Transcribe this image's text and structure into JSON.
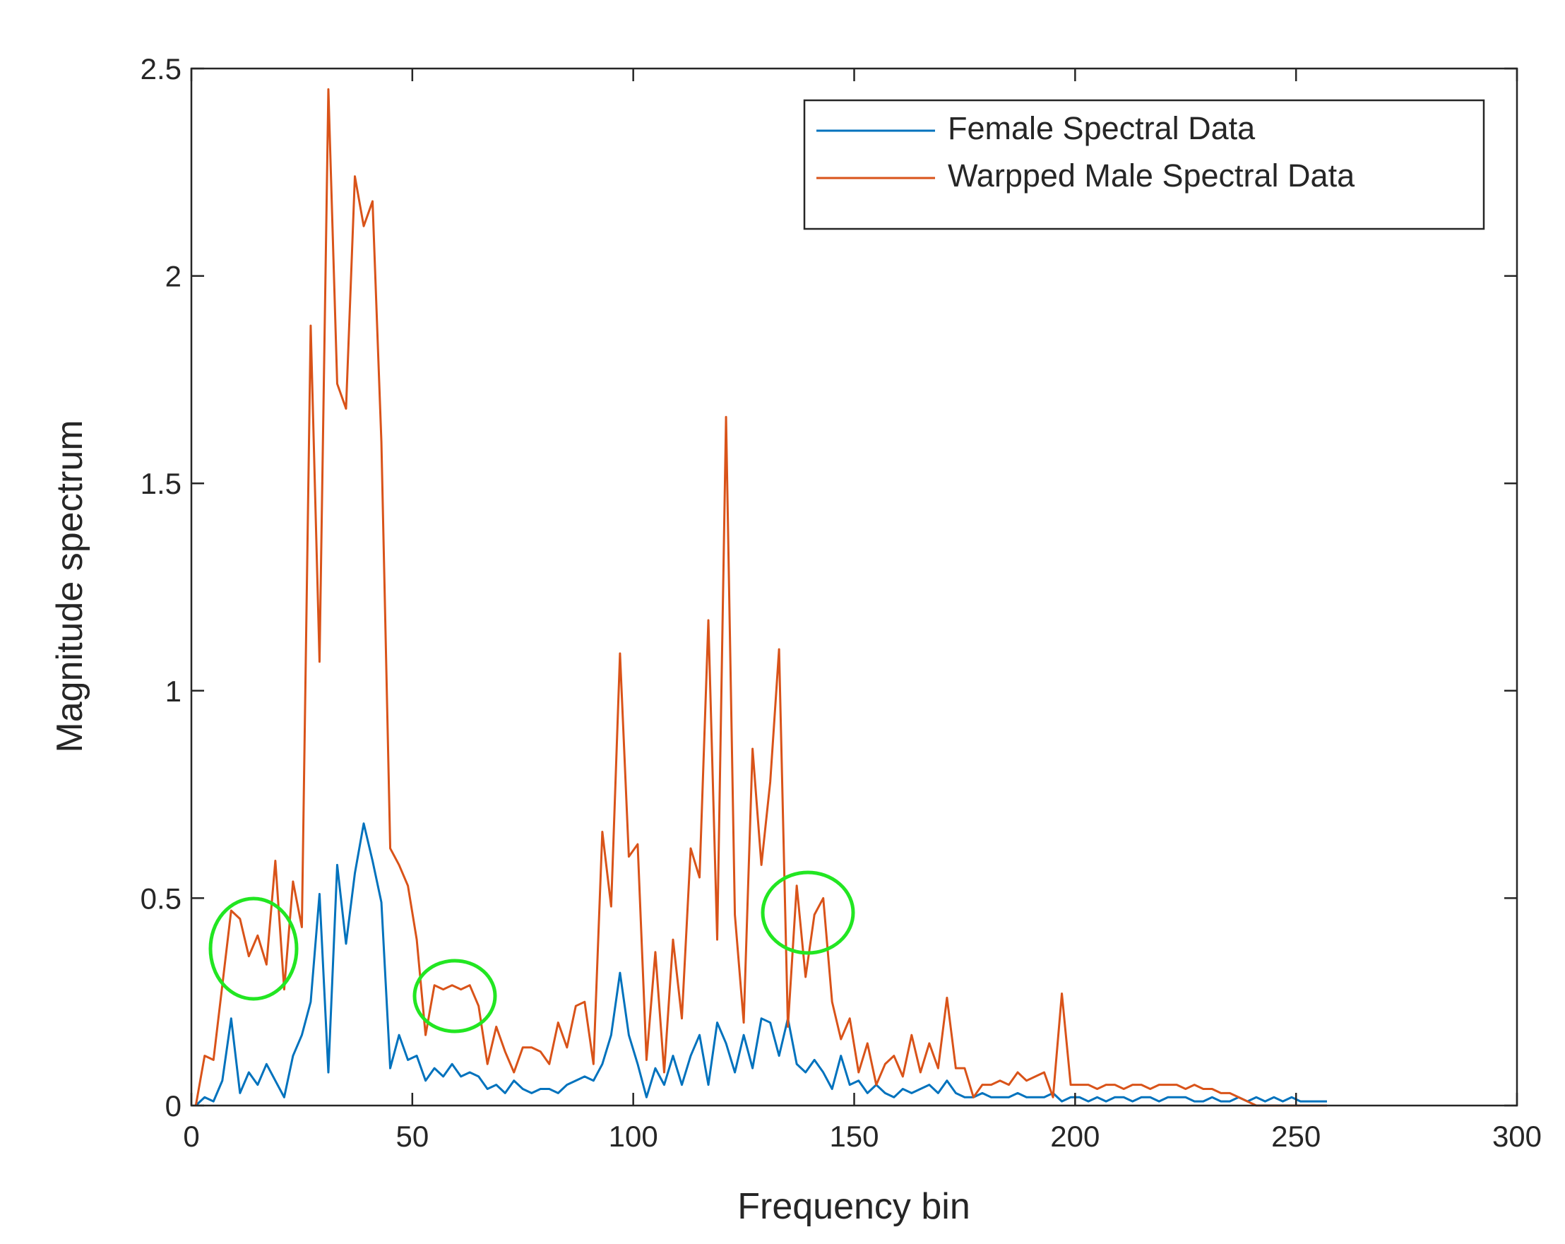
{
  "chart_data": {
    "type": "line",
    "xlabel": "Frequency bin",
    "ylabel": "Magnitude spectrum",
    "x": [
      1,
      3,
      5,
      7,
      9,
      11,
      13,
      15,
      17,
      19,
      21,
      23,
      25,
      27,
      29,
      31,
      33,
      35,
      37,
      39,
      41,
      43,
      45,
      47,
      49,
      51,
      53,
      55,
      57,
      59,
      61,
      63,
      65,
      67,
      69,
      71,
      73,
      75,
      77,
      79,
      81,
      83,
      85,
      87,
      89,
      91,
      93,
      95,
      97,
      99,
      101,
      103,
      105,
      107,
      109,
      111,
      113,
      115,
      117,
      119,
      121,
      123,
      125,
      127,
      129,
      131,
      133,
      135,
      137,
      139,
      141,
      143,
      145,
      147,
      149,
      151,
      153,
      155,
      157,
      159,
      161,
      163,
      165,
      167,
      169,
      171,
      173,
      175,
      177,
      179,
      181,
      183,
      185,
      187,
      189,
      191,
      193,
      195,
      197,
      199,
      201,
      203,
      205,
      207,
      209,
      211,
      213,
      215,
      217,
      219,
      221,
      223,
      225,
      227,
      229,
      231,
      233,
      235,
      237,
      239,
      241,
      243,
      245,
      247,
      249,
      251,
      253,
      255,
      257
    ],
    "series": [
      {
        "name": "Female Spectral Data",
        "color": "#0072BD",
        "values": [
          0,
          0.02,
          0.01,
          0.06,
          0.21,
          0.03,
          0.08,
          0.05,
          0.1,
          0.06,
          0.02,
          0.12,
          0.17,
          0.25,
          0.51,
          0.08,
          0.58,
          0.39,
          0.56,
          0.68,
          0.59,
          0.49,
          0.09,
          0.17,
          0.11,
          0.12,
          0.06,
          0.09,
          0.07,
          0.1,
          0.07,
          0.08,
          0.07,
          0.04,
          0.05,
          0.03,
          0.06,
          0.04,
          0.03,
          0.04,
          0.04,
          0.03,
          0.05,
          0.06,
          0.07,
          0.06,
          0.1,
          0.17,
          0.32,
          0.17,
          0.1,
          0.02,
          0.09,
          0.05,
          0.12,
          0.05,
          0.12,
          0.17,
          0.05,
          0.2,
          0.15,
          0.08,
          0.17,
          0.09,
          0.21,
          0.2,
          0.12,
          0.21,
          0.1,
          0.08,
          0.11,
          0.08,
          0.04,
          0.12,
          0.05,
          0.06,
          0.03,
          0.05,
          0.03,
          0.02,
          0.04,
          0.03,
          0.04,
          0.05,
          0.03,
          0.06,
          0.03,
          0.02,
          0.02,
          0.03,
          0.02,
          0.02,
          0.02,
          0.03,
          0.02,
          0.02,
          0.02,
          0.03,
          0.01,
          0.02,
          0.02,
          0.01,
          0.02,
          0.01,
          0.02,
          0.02,
          0.01,
          0.02,
          0.02,
          0.01,
          0.02,
          0.02,
          0.02,
          0.01,
          0.01,
          0.02,
          0.01,
          0.01,
          0.02,
          0.01,
          0.02,
          0.01,
          0.02,
          0.01,
          0.02,
          0.01,
          0.01,
          0.01,
          0.01
        ]
      },
      {
        "name": "Warpped Male Spectral Data",
        "color": "#D95319",
        "values": [
          0,
          0.12,
          0.11,
          0.29,
          0.47,
          0.45,
          0.36,
          0.41,
          0.34,
          0.59,
          0.28,
          0.54,
          0.43,
          1.88,
          1.07,
          2.45,
          1.74,
          1.68,
          2.24,
          2.12,
          2.18,
          1.6,
          0.62,
          0.58,
          0.53,
          0.4,
          0.17,
          0.29,
          0.28,
          0.29,
          0.28,
          0.29,
          0.24,
          0.1,
          0.19,
          0.13,
          0.08,
          0.14,
          0.14,
          0.13,
          0.1,
          0.2,
          0.14,
          0.24,
          0.25,
          0.1,
          0.66,
          0.48,
          1.09,
          0.6,
          0.63,
          0.11,
          0.37,
          0.08,
          0.4,
          0.21,
          0.62,
          0.55,
          1.17,
          0.4,
          1.66,
          0.46,
          0.2,
          0.86,
          0.58,
          0.78,
          1.1,
          0.19,
          0.53,
          0.31,
          0.46,
          0.5,
          0.25,
          0.16,
          0.21,
          0.08,
          0.15,
          0.05,
          0.1,
          0.12,
          0.07,
          0.17,
          0.08,
          0.15,
          0.09,
          0.26,
          0.09,
          0.09,
          0.02,
          0.05,
          0.05,
          0.06,
          0.05,
          0.08,
          0.06,
          0.07,
          0.08,
          0.02,
          0.27,
          0.05,
          0.05,
          0.05,
          0.04,
          0.05,
          0.05,
          0.04,
          0.05,
          0.05,
          0.04,
          0.05,
          0.05,
          0.05,
          0.04,
          0.05,
          0.04,
          0.04,
          0.03,
          0.03,
          0.02,
          0.01,
          0,
          0,
          0,
          0,
          0,
          0,
          0,
          0,
          0
        ]
      }
    ],
    "xlim": [
      0,
      300
    ],
    "xticks": [
      0,
      50,
      100,
      150,
      200,
      250,
      300
    ],
    "ylim": [
      0,
      2.5
    ],
    "yticks": [
      0,
      0.5,
      1,
      1.5,
      2,
      2.5
    ],
    "grid": false,
    "legend": "upper right"
  }
}
